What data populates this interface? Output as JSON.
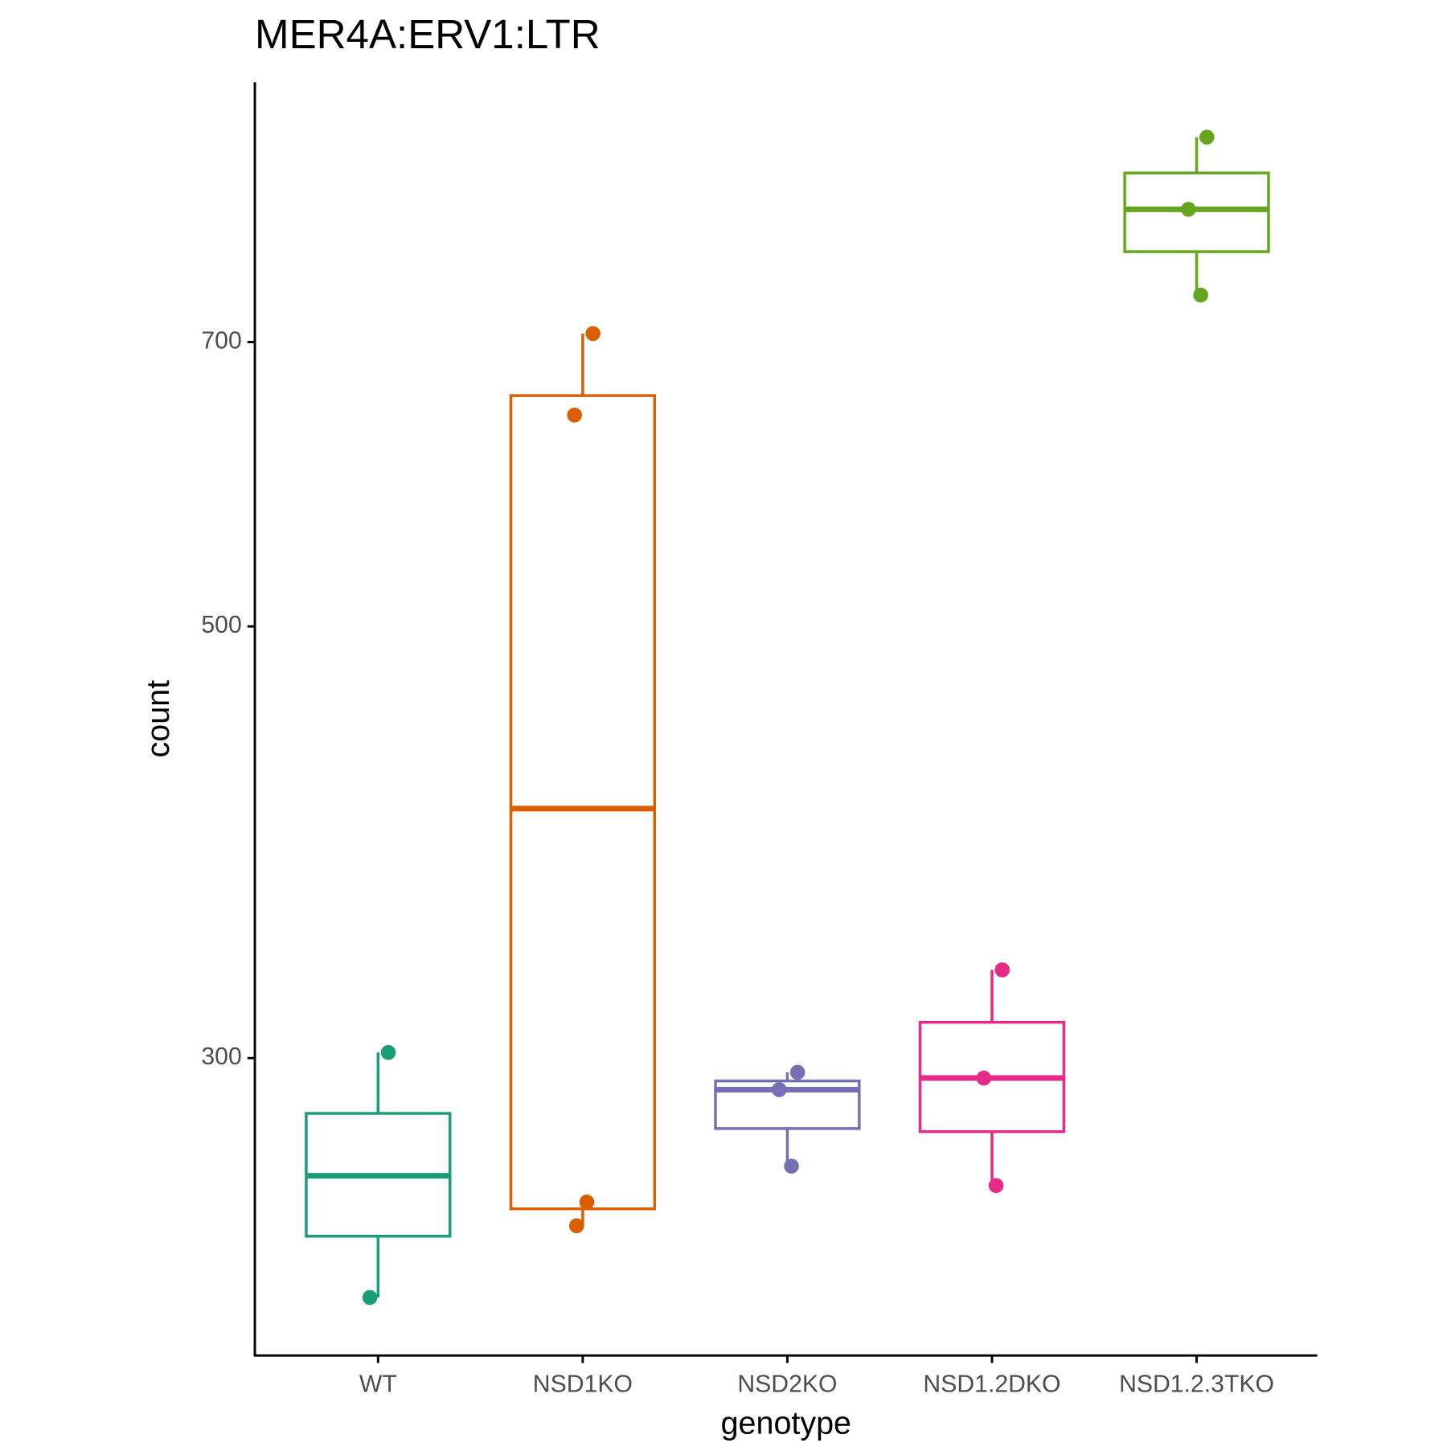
{
  "chart_data": {
    "type": "box",
    "title": "MER4A:ERV1:LTR",
    "x_label": "genotype",
    "y_label": "count",
    "categories": [
      "WT",
      "NSD1KO",
      "NSD2KO",
      "NSD1.2DKO",
      "NSD1.2.3TKO"
    ],
    "boxes": [
      {
        "color": "#1b9e77",
        "min": 226,
        "q1": 243,
        "median": 261,
        "q3": 281,
        "max": 302,
        "points": [
          302,
          226
        ]
      },
      {
        "color": "#d95f02",
        "min": 246,
        "q1": 251,
        "median": 403,
        "q3": 657,
        "max": 707,
        "points": [
          707,
          642,
          253,
          246
        ]
      },
      {
        "color": "#7570b3",
        "min": 264,
        "q1": 276,
        "median": 289,
        "q3": 292,
        "max": 295,
        "points": [
          295,
          289,
          264
        ]
      },
      {
        "color": "#e7298a",
        "min": 258,
        "q1": 275,
        "median": 293,
        "q3": 313,
        "max": 333,
        "points": [
          333,
          293,
          258
        ]
      },
      {
        "color": "#66a61e",
        "min": 740,
        "q1": 779,
        "median": 819,
        "q3": 855,
        "max": 892,
        "points": [
          892,
          819,
          740
        ]
      }
    ],
    "ylim": [
      211,
      952
    ],
    "yticks": [
      300,
      500,
      700
    ],
    "log_y": true,
    "grid": false
  }
}
